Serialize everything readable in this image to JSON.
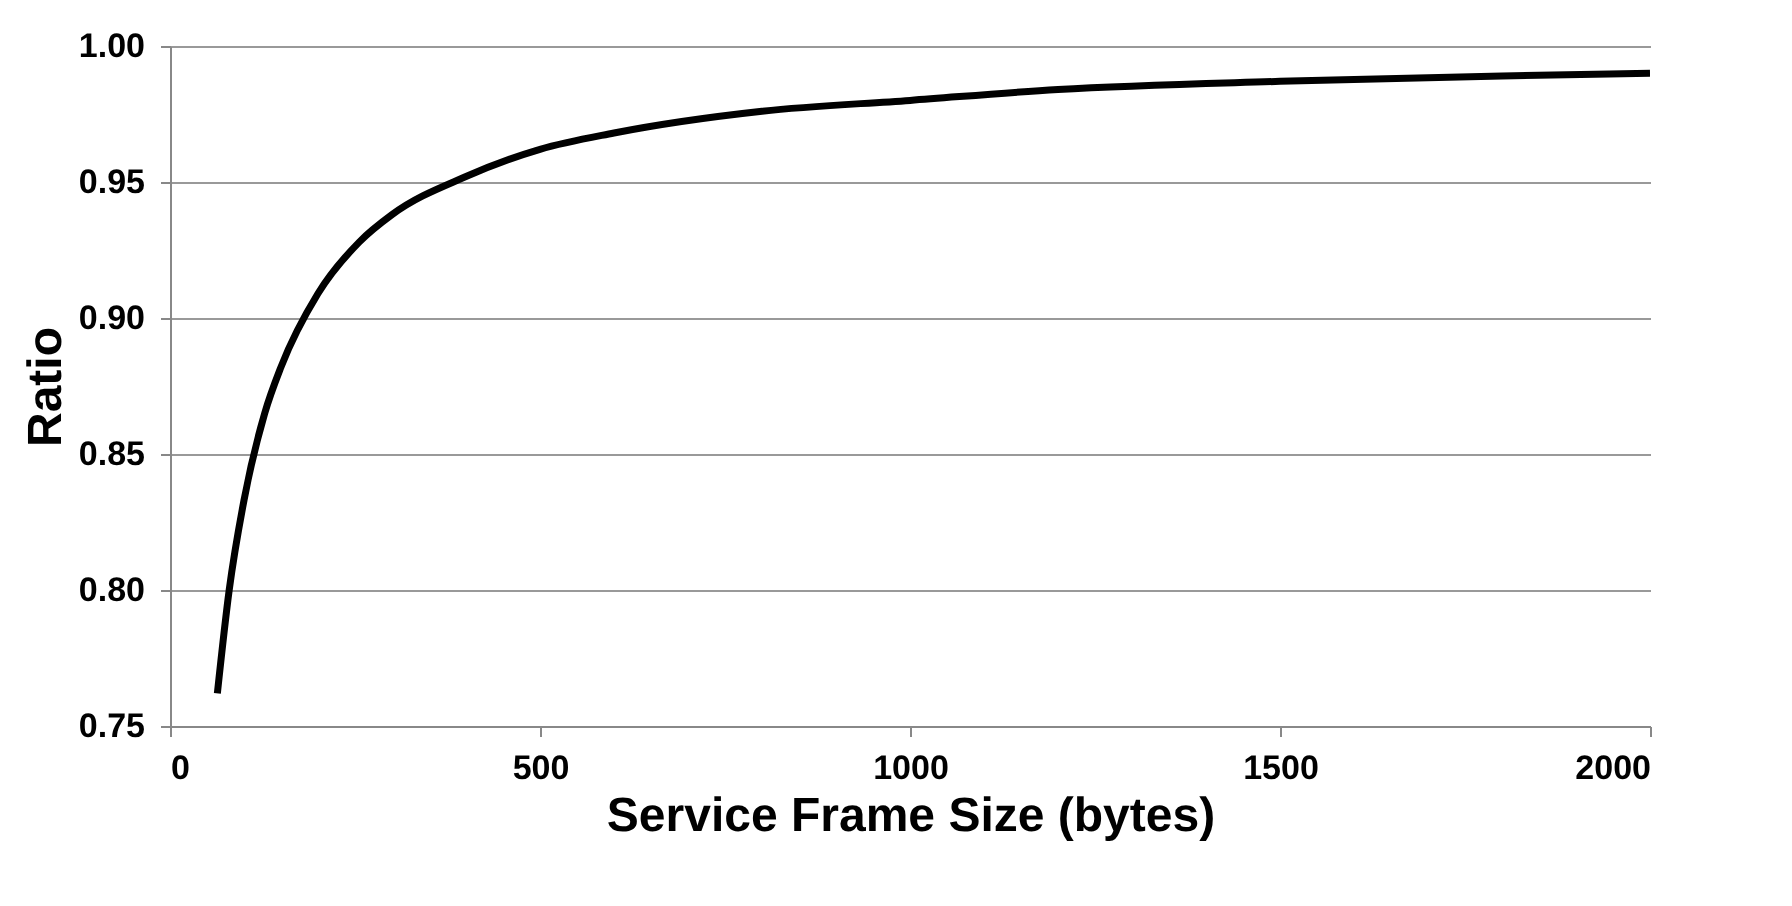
{
  "chart_data": {
    "type": "line",
    "xlabel": "Service Frame Size (bytes)",
    "ylabel": "Ratio",
    "x": [
      64,
      80,
      100,
      128,
      150,
      200,
      256,
      300,
      400,
      500,
      600,
      800,
      1000,
      1200,
      1500,
      1800,
      2000
    ],
    "series": [
      {
        "color": "#000000",
        "values": [
          0.762,
          0.8,
          0.833,
          0.865,
          0.882,
          0.909,
          0.928,
          0.938,
          0.952,
          0.962,
          0.968,
          0.976,
          0.98,
          0.984,
          0.987,
          0.989,
          0.99
        ]
      }
    ],
    "xlim": [
      0,
      2000
    ],
    "xticks": [
      0,
      500,
      1000,
      1500,
      2000
    ],
    "ylim": [
      0.75,
      1.0
    ],
    "yticks": [
      {
        "value": 0.75,
        "label": "0.75"
      },
      {
        "value": 0.8,
        "label": "0.80"
      },
      {
        "value": 0.85,
        "label": "0.85"
      },
      {
        "value": 0.9,
        "label": "0.90"
      },
      {
        "value": 0.95,
        "label": "0.95"
      },
      {
        "value": 1.0,
        "label": "1.00"
      }
    ],
    "grid": "y",
    "marker": "none",
    "line_style": "solid"
  }
}
